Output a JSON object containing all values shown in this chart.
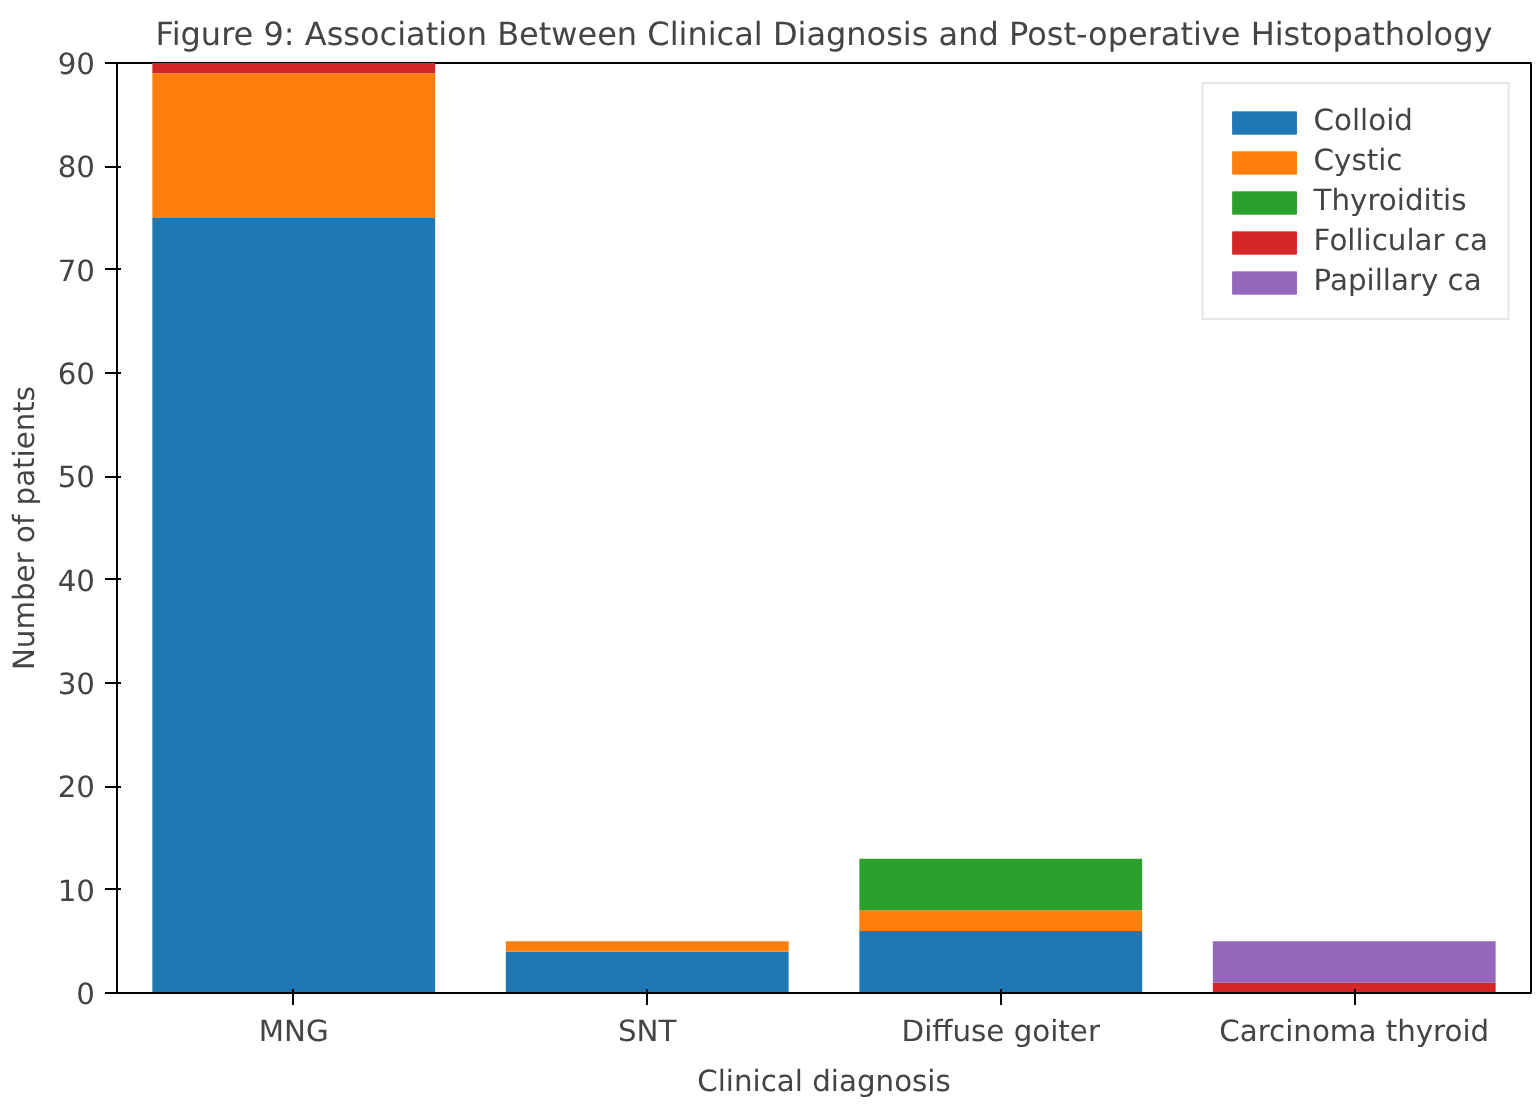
{
  "chart_data": {
    "type": "bar",
    "stacked": true,
    "title": "Figure 9: Association Between Clinical Diagnosis and Post-operative Histopathology",
    "xlabel": "Clinical diagnosis",
    "ylabel": "Number of patients",
    "categories": [
      "MNG",
      "SNT",
      "Diffuse goiter",
      "Carcinoma thyroid"
    ],
    "series": [
      {
        "name": "Colloid",
        "color": "#1f77b4",
        "values": [
          75,
          4,
          6,
          0
        ]
      },
      {
        "name": "Cystic",
        "color": "#ff7f0e",
        "values": [
          14,
          1,
          2,
          0
        ]
      },
      {
        "name": "Thyroiditis",
        "color": "#2ca02c",
        "values": [
          0,
          0,
          5,
          0
        ]
      },
      {
        "name": "Follicular ca",
        "color": "#d62728",
        "values": [
          1,
          0,
          0,
          1
        ]
      },
      {
        "name": "Papillary ca",
        "color": "#9467bd",
        "values": [
          0,
          0,
          0,
          4
        ]
      }
    ],
    "ylim": [
      0,
      90
    ],
    "yticks": [
      0,
      10,
      20,
      30,
      40,
      50,
      60,
      70,
      80,
      90
    ],
    "legend": "top right",
    "grid": false
  }
}
